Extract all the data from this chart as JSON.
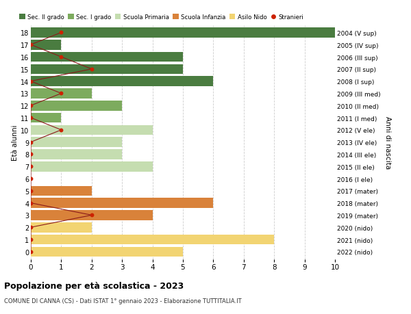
{
  "ages": [
    18,
    17,
    16,
    15,
    14,
    13,
    12,
    11,
    10,
    9,
    8,
    7,
    6,
    5,
    4,
    3,
    2,
    1,
    0
  ],
  "right_labels": [
    "2004 (V sup)",
    "2005 (IV sup)",
    "2006 (III sup)",
    "2007 (II sup)",
    "2008 (I sup)",
    "2009 (III med)",
    "2010 (II med)",
    "2011 (I med)",
    "2012 (V ele)",
    "2013 (IV ele)",
    "2014 (III ele)",
    "2015 (II ele)",
    "2016 (I ele)",
    "2017 (mater)",
    "2018 (mater)",
    "2019 (mater)",
    "2020 (nido)",
    "2021 (nido)",
    "2022 (nido)"
  ],
  "bar_values": [
    10,
    1,
    5,
    5,
    6,
    2,
    3,
    1,
    4,
    3,
    3,
    4,
    0,
    2,
    6,
    4,
    2,
    8,
    5
  ],
  "bar_colors": [
    "#4a7c40",
    "#4a7c40",
    "#4a7c40",
    "#4a7c40",
    "#4a7c40",
    "#7dab5e",
    "#7dab5e",
    "#7dab5e",
    "#c5ddb0",
    "#c5ddb0",
    "#c5ddb0",
    "#c5ddb0",
    "#c5ddb0",
    "#d9823a",
    "#d9823a",
    "#d9823a",
    "#f2d472",
    "#f2d472",
    "#f2d472"
  ],
  "stranieri_x": [
    1,
    0,
    1,
    2,
    0,
    1,
    0,
    0,
    1,
    0,
    0,
    0,
    0,
    0,
    0,
    2,
    0,
    0,
    0
  ],
  "legend_labels": [
    "Sec. II grado",
    "Sec. I grado",
    "Scuola Primaria",
    "Scuola Infanzia",
    "Asilo Nido",
    "Stranieri"
  ],
  "legend_colors": [
    "#4a7c40",
    "#7dab5e",
    "#c5ddb0",
    "#d9823a",
    "#f2d472",
    "#cc2200"
  ],
  "title": "Popolazione per età scolastica - 2023",
  "subtitle": "COMUNE DI CANNA (CS) - Dati ISTAT 1° gennaio 2023 - Elaborazione TUTTITALIA.IT",
  "ylabel_left": "Età alunni",
  "ylabel_right": "Anni di nascita",
  "xlim": [
    0,
    10
  ],
  "background_color": "#ffffff",
  "grid_color": "#cccccc",
  "bar_height": 0.82
}
